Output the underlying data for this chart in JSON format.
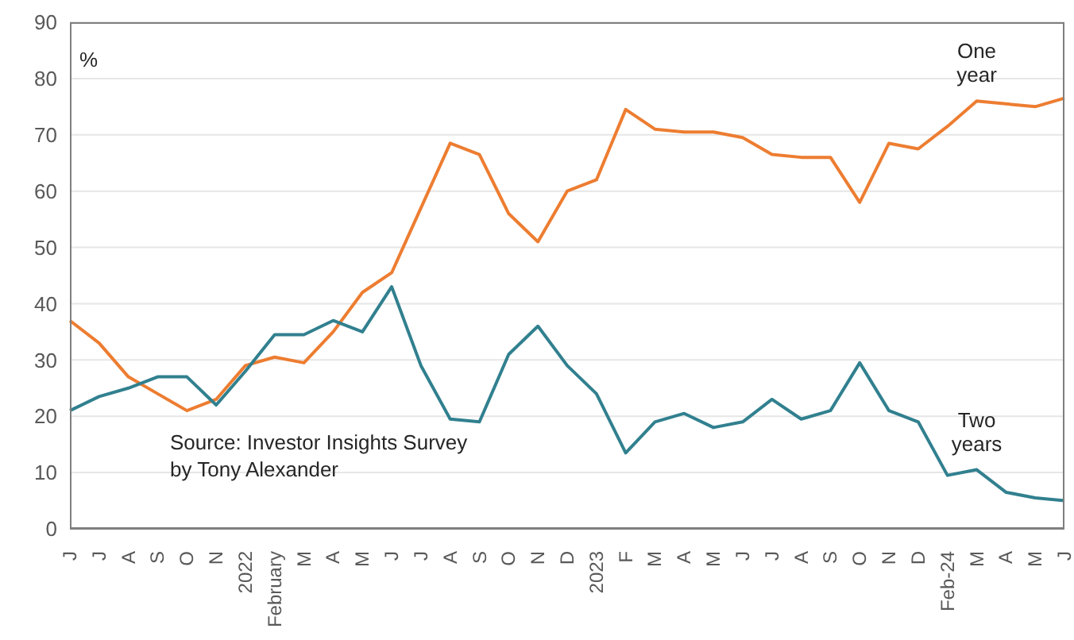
{
  "chart_data": {
    "type": "line",
    "ylabel": "%",
    "categories": [
      "J",
      "J",
      "A",
      "S",
      "O",
      "N",
      "2022",
      "February",
      "M",
      "A",
      "M",
      "J",
      "J",
      "A",
      "S",
      "O",
      "N",
      "D",
      "2023",
      "F",
      "M",
      "A",
      "M",
      "J",
      "J",
      "A",
      "S",
      "O",
      "N",
      "D",
      "Feb-24",
      "M",
      "A",
      "M",
      "J"
    ],
    "series": [
      {
        "name": "One year",
        "color": "#ed7d31",
        "values": [
          37,
          33,
          27,
          24,
          21,
          23,
          29,
          30.5,
          29.5,
          35,
          42,
          45.5,
          57,
          68.5,
          66.5,
          56,
          51,
          60,
          62,
          74.5,
          71,
          70.5,
          70.5,
          69.5,
          66.5,
          66,
          66,
          58,
          68.5,
          67.5,
          71.5,
          76,
          75.5,
          75,
          76.5
        ]
      },
      {
        "name": "Two years",
        "color": "#31808f",
        "values": [
          21,
          23.5,
          25,
          27,
          27,
          22,
          28,
          34.5,
          34.5,
          37,
          35,
          43,
          29,
          19.5,
          19,
          31,
          36,
          29,
          24,
          13.5,
          19,
          20.5,
          18,
          19,
          23,
          19.5,
          21,
          29.5,
          21,
          19,
          9.5,
          10.5,
          6.5,
          5.5,
          5
        ]
      }
    ],
    "ylim": [
      0,
      90
    ],
    "yticks": [
      0,
      10,
      20,
      30,
      40,
      50,
      60,
      70,
      80,
      90
    ],
    "grid": "y",
    "marker": "none",
    "line_style": "solid",
    "annotations": [
      "Source: Investor Insights Survey by Tony Alexander"
    ]
  }
}
